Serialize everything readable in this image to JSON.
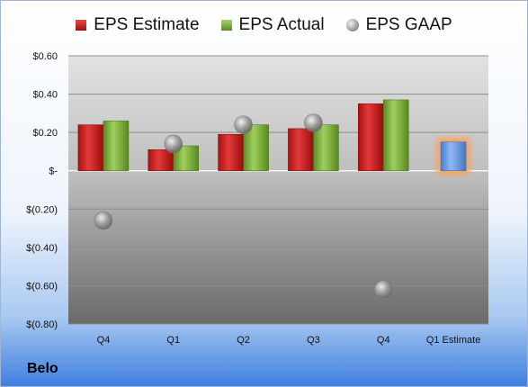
{
  "company": "Belo",
  "legend": [
    {
      "label": "EPS Estimate",
      "kind": "est"
    },
    {
      "label": "EPS Actual",
      "kind": "act"
    },
    {
      "label": "EPS GAAP",
      "kind": "gaap"
    }
  ],
  "chart_data": {
    "type": "bar",
    "categories": [
      "Q4",
      "Q1",
      "Q2",
      "Q3",
      "Q4",
      "Q1 Estimate"
    ],
    "series": [
      {
        "name": "EPS Estimate",
        "type": "bar",
        "color": "#c0191b",
        "values": [
          0.24,
          0.11,
          0.19,
          0.22,
          0.35,
          null
        ]
      },
      {
        "name": "EPS Actual",
        "type": "bar",
        "color": "#76a337",
        "values": [
          0.26,
          0.13,
          0.24,
          0.24,
          0.37,
          null
        ]
      },
      {
        "name": "EPS GAAP",
        "type": "scatter",
        "color": "#8e8e8e",
        "values": [
          -0.26,
          0.14,
          0.24,
          0.25,
          -0.62,
          null
        ]
      },
      {
        "name": "Q1 Estimate",
        "type": "bar",
        "color": "#6f9fe6",
        "highlight": "#f4a460",
        "values": [
          null,
          null,
          null,
          null,
          null,
          0.15
        ]
      }
    ],
    "yticks": [
      "$0.60",
      "$0.40",
      "$0.20",
      "$-",
      "$(0.20)",
      "$(0.40)",
      "$(0.60)",
      "$(0.80)"
    ],
    "ytick_values": [
      0.6,
      0.4,
      0.2,
      0,
      -0.2,
      -0.4,
      -0.6,
      -0.8
    ],
    "ylim": [
      -0.8,
      0.6
    ],
    "grid": true,
    "legend_position": "top"
  }
}
